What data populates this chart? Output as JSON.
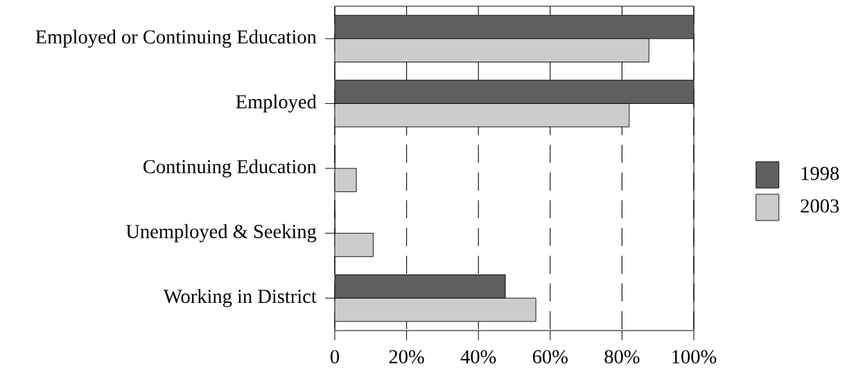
{
  "chart_data": {
    "type": "bar",
    "orientation": "horizontal",
    "categories": [
      "Employed or Continuing Education",
      "Employed",
      "Continuing Education",
      "Unemployed & Seeking",
      "Working in District"
    ],
    "series": [
      {
        "name": "1998",
        "color": "#5f5f5f",
        "values": [
          100,
          100,
          0,
          0,
          47.5
        ]
      },
      {
        "name": "2003",
        "color": "#cccccc",
        "values": [
          87.5,
          82,
          6,
          10.7,
          56
        ]
      }
    ],
    "xlim": [
      0,
      100
    ],
    "xticks": [
      0,
      {
        "value": 20,
        "label": "20%"
      },
      {
        "value": 40,
        "label": "40%"
      },
      {
        "value": 60,
        "label": "60%"
      },
      {
        "value": 80,
        "label": "80%"
      },
      {
        "value": 100,
        "label": "100%"
      }
    ],
    "grid": "x",
    "legend": "right"
  }
}
